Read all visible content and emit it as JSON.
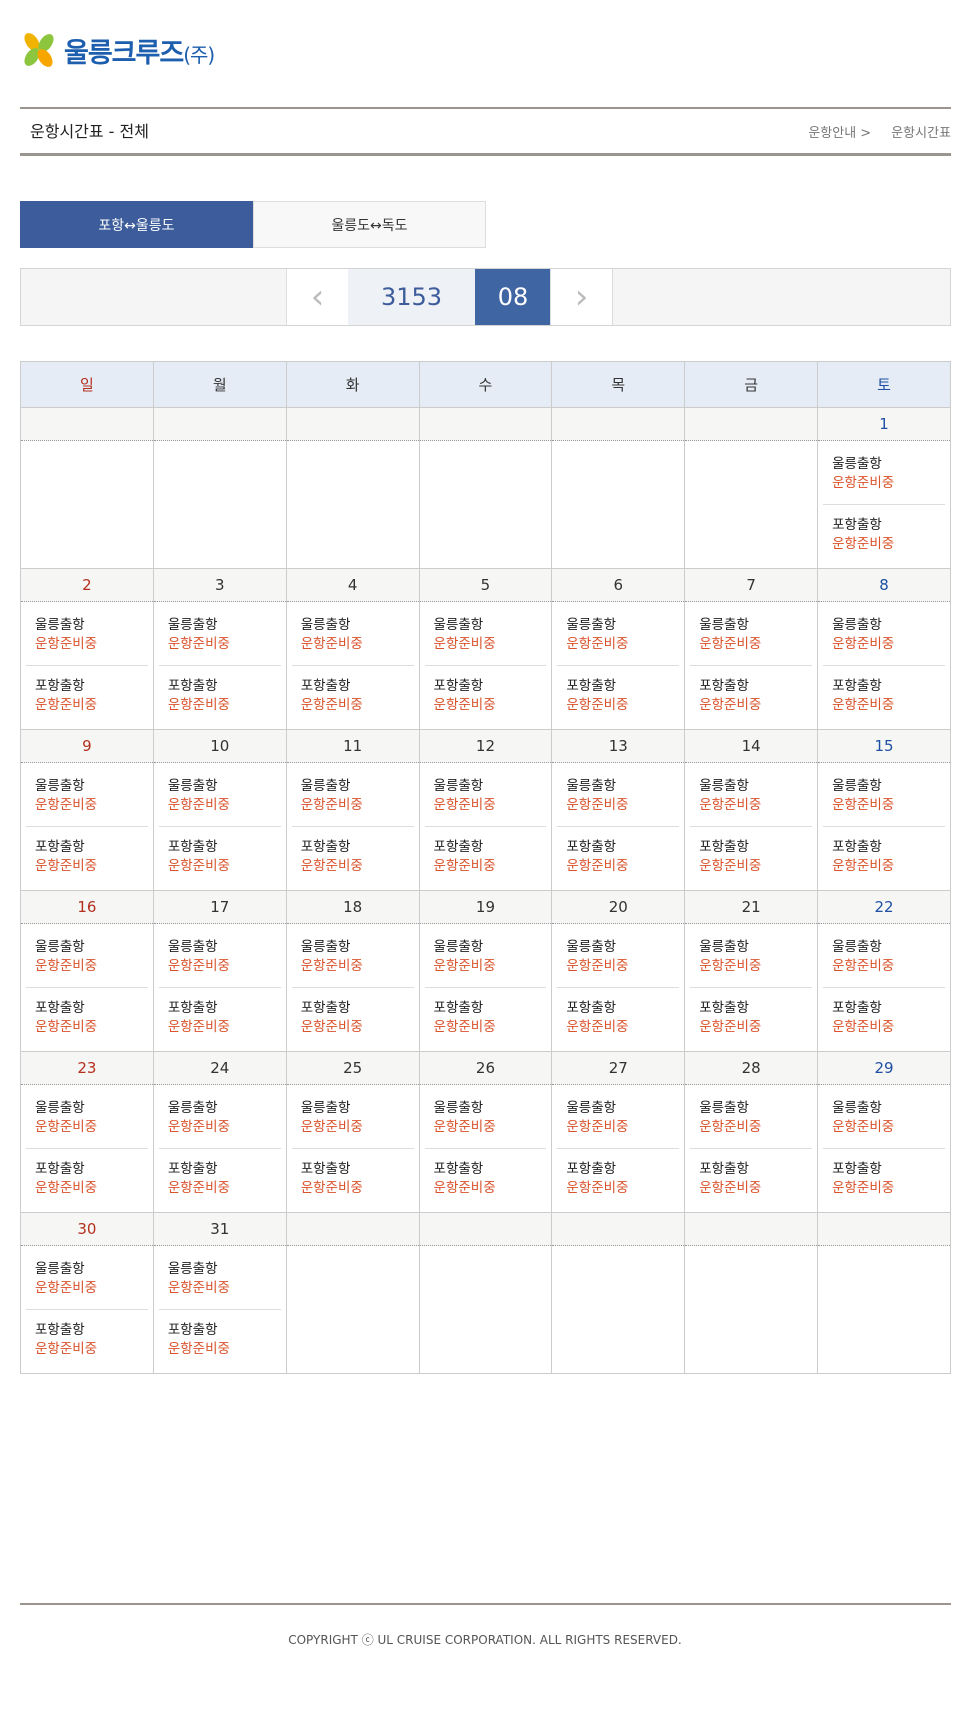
{
  "header": {
    "logo_text": "울릉크루즈",
    "logo_suffix": "(주)",
    "page_title": "운항시간표 - 전체",
    "breadcrumb": [
      "운항안내 >",
      "운항시간표"
    ]
  },
  "tabs": [
    {
      "label": "포항↔울릉도",
      "active": true
    },
    {
      "label": "울릉도↔독도",
      "active": false
    }
  ],
  "nav": {
    "year": "3153",
    "month": "08",
    "prev_icon": "chevron-left-icon",
    "next_icon": "chevron-right-icon"
  },
  "colors": {
    "accent": "#3c5c9b",
    "sunday": "#b3301f",
    "saturday": "#1e4fa3",
    "status": "#d9532b"
  },
  "calendar": {
    "weekdays": [
      "일",
      "월",
      "화",
      "수",
      "목",
      "금",
      "토"
    ],
    "trip_labels": [
      "울릉출항",
      "포항출항"
    ],
    "weeks": [
      [
        null,
        null,
        null,
        null,
        null,
        null,
        {
          "day": "1",
          "trips": [
            {
              "label": "울릉출항",
              "status": "운항준비중"
            },
            {
              "label": "포항출항",
              "status": "운항준비중"
            }
          ]
        }
      ],
      [
        {
          "day": "2",
          "trips": [
            {
              "label": "울릉출항",
              "status": "운항준비중"
            },
            {
              "label": "포항출항",
              "status": "운항준비중"
            }
          ]
        },
        {
          "day": "3",
          "trips": [
            {
              "label": "울릉출항",
              "status": "운항준비중"
            },
            {
              "label": "포항출항",
              "status": "운항준비중"
            }
          ]
        },
        {
          "day": "4",
          "trips": [
            {
              "label": "울릉출항",
              "status": "운항준비중"
            },
            {
              "label": "포항출항",
              "status": "운항준비중"
            }
          ]
        },
        {
          "day": "5",
          "trips": [
            {
              "label": "울릉출항",
              "status": "운항준비중"
            },
            {
              "label": "포항출항",
              "status": "운항준비중"
            }
          ]
        },
        {
          "day": "6",
          "trips": [
            {
              "label": "울릉출항",
              "status": "운항준비중"
            },
            {
              "label": "포항출항",
              "status": "운항준비중"
            }
          ]
        },
        {
          "day": "7",
          "trips": [
            {
              "label": "울릉출항",
              "status": "운항준비중"
            },
            {
              "label": "포항출항",
              "status": "운항준비중"
            }
          ]
        },
        {
          "day": "8",
          "trips": [
            {
              "label": "울릉출항",
              "status": "운항준비중"
            },
            {
              "label": "포항출항",
              "status": "운항준비중"
            }
          ]
        }
      ],
      [
        {
          "day": "9",
          "trips": [
            {
              "label": "울릉출항",
              "status": "운항준비중"
            },
            {
              "label": "포항출항",
              "status": "운항준비중"
            }
          ]
        },
        {
          "day": "10",
          "trips": [
            {
              "label": "울릉출항",
              "status": "운항준비중"
            },
            {
              "label": "포항출항",
              "status": "운항준비중"
            }
          ]
        },
        {
          "day": "11",
          "trips": [
            {
              "label": "울릉출항",
              "status": "운항준비중"
            },
            {
              "label": "포항출항",
              "status": "운항준비중"
            }
          ]
        },
        {
          "day": "12",
          "trips": [
            {
              "label": "울릉출항",
              "status": "운항준비중"
            },
            {
              "label": "포항출항",
              "status": "운항준비중"
            }
          ]
        },
        {
          "day": "13",
          "trips": [
            {
              "label": "울릉출항",
              "status": "운항준비중"
            },
            {
              "label": "포항출항",
              "status": "운항준비중"
            }
          ]
        },
        {
          "day": "14",
          "trips": [
            {
              "label": "울릉출항",
              "status": "운항준비중"
            },
            {
              "label": "포항출항",
              "status": "운항준비중"
            }
          ]
        },
        {
          "day": "15",
          "trips": [
            {
              "label": "울릉출항",
              "status": "운항준비중"
            },
            {
              "label": "포항출항",
              "status": "운항준비중"
            }
          ]
        }
      ],
      [
        {
          "day": "16",
          "trips": [
            {
              "label": "울릉출항",
              "status": "운항준비중"
            },
            {
              "label": "포항출항",
              "status": "운항준비중"
            }
          ]
        },
        {
          "day": "17",
          "trips": [
            {
              "label": "울릉출항",
              "status": "운항준비중"
            },
            {
              "label": "포항출항",
              "status": "운항준비중"
            }
          ]
        },
        {
          "day": "18",
          "trips": [
            {
              "label": "울릉출항",
              "status": "운항준비중"
            },
            {
              "label": "포항출항",
              "status": "운항준비중"
            }
          ]
        },
        {
          "day": "19",
          "trips": [
            {
              "label": "울릉출항",
              "status": "운항준비중"
            },
            {
              "label": "포항출항",
              "status": "운항준비중"
            }
          ]
        },
        {
          "day": "20",
          "trips": [
            {
              "label": "울릉출항",
              "status": "운항준비중"
            },
            {
              "label": "포항출항",
              "status": "운항준비중"
            }
          ]
        },
        {
          "day": "21",
          "trips": [
            {
              "label": "울릉출항",
              "status": "운항준비중"
            },
            {
              "label": "포항출항",
              "status": "운항준비중"
            }
          ]
        },
        {
          "day": "22",
          "trips": [
            {
              "label": "울릉출항",
              "status": "운항준비중"
            },
            {
              "label": "포항출항",
              "status": "운항준비중"
            }
          ]
        }
      ],
      [
        {
          "day": "23",
          "trips": [
            {
              "label": "울릉출항",
              "status": "운항준비중"
            },
            {
              "label": "포항출항",
              "status": "운항준비중"
            }
          ]
        },
        {
          "day": "24",
          "trips": [
            {
              "label": "울릉출항",
              "status": "운항준비중"
            },
            {
              "label": "포항출항",
              "status": "운항준비중"
            }
          ]
        },
        {
          "day": "25",
          "trips": [
            {
              "label": "울릉출항",
              "status": "운항준비중"
            },
            {
              "label": "포항출항",
              "status": "운항준비중"
            }
          ]
        },
        {
          "day": "26",
          "trips": [
            {
              "label": "울릉출항",
              "status": "운항준비중"
            },
            {
              "label": "포항출항",
              "status": "운항준비중"
            }
          ]
        },
        {
          "day": "27",
          "trips": [
            {
              "label": "울릉출항",
              "status": "운항준비중"
            },
            {
              "label": "포항출항",
              "status": "운항준비중"
            }
          ]
        },
        {
          "day": "28",
          "trips": [
            {
              "label": "울릉출항",
              "status": "운항준비중"
            },
            {
              "label": "포항출항",
              "status": "운항준비중"
            }
          ]
        },
        {
          "day": "29",
          "trips": [
            {
              "label": "울릉출항",
              "status": "운항준비중"
            },
            {
              "label": "포항출항",
              "status": "운항준비중"
            }
          ]
        }
      ],
      [
        {
          "day": "30",
          "trips": [
            {
              "label": "울릉출항",
              "status": "운항준비중"
            },
            {
              "label": "포항출항",
              "status": "운항준비중"
            }
          ]
        },
        {
          "day": "31",
          "trips": [
            {
              "label": "울릉출항",
              "status": "운항준비중"
            },
            {
              "label": "포항출항",
              "status": "운항준비중"
            }
          ]
        },
        null,
        null,
        null,
        null,
        null
      ]
    ]
  },
  "footer": {
    "copyright": "COPYRIGHT ⓒ UL CRUISE CORPORATION. ALL RIGHTS RESERVED."
  }
}
